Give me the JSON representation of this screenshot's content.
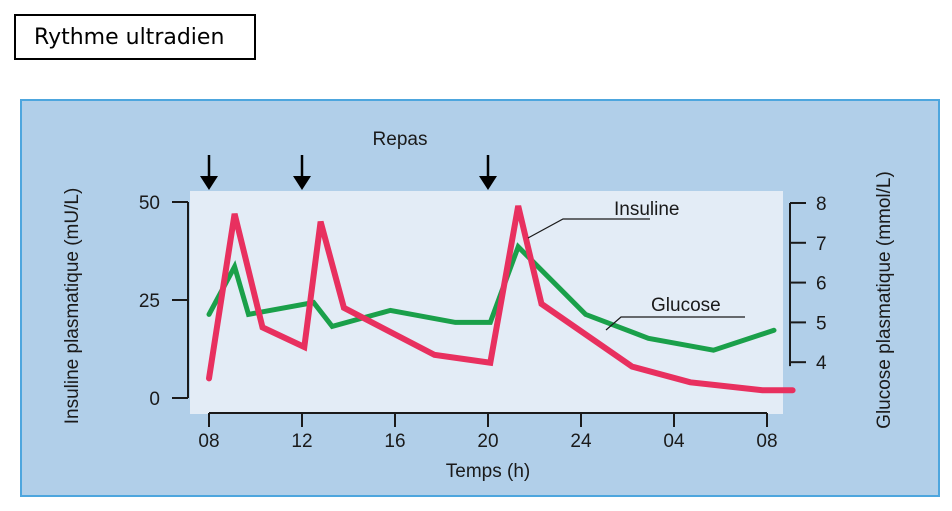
{
  "header": {
    "title": "Rythme ultradien"
  },
  "chart_data": {
    "type": "line",
    "annotation": "Repas",
    "meal_times": [
      "08",
      "12",
      "20"
    ],
    "meal_x": [
      0,
      4,
      12
    ],
    "xlabel": "Temps (h)",
    "ylabel_left": "Insuline plasmatique (mU/L)",
    "ylabel_right": "Glucose plasmatique (mmol/L)",
    "x_ticks": [
      "08",
      "12",
      "16",
      "20",
      "24",
      "04",
      "08"
    ],
    "x_tick_values": [
      0,
      4,
      8,
      12,
      16,
      20,
      24
    ],
    "xlim": [
      0,
      24
    ],
    "y_left_ticks": [
      "0",
      "25",
      "50"
    ],
    "y_left_values": [
      0,
      25,
      50
    ],
    "ylim_left": [
      0,
      50
    ],
    "y_right_ticks": [
      "4",
      "5",
      "6",
      "7",
      "8"
    ],
    "y_right_values": [
      4,
      5,
      6,
      7,
      8
    ],
    "ylim_right": [
      3.1,
      8
    ],
    "series": [
      {
        "name": "Insuline",
        "axis": "left",
        "color": "#e8305f",
        "x": [
          0,
          1.1,
          2.3,
          4.1,
          4.8,
          5.8,
          9.7,
          12.1,
          13.3,
          14.3,
          18.2,
          20.7,
          23.8,
          25.1
        ],
        "y": [
          5,
          47,
          18,
          13,
          45,
          23,
          11,
          9,
          49,
          24,
          8,
          4,
          2,
          2
        ]
      },
      {
        "name": "Glucose",
        "axis": "right",
        "color": "#1aa04a",
        "x": [
          0,
          1.1,
          1.7,
          4.5,
          5.3,
          7.8,
          10.6,
          12.1,
          13.3,
          16.2,
          18.9,
          21.7,
          24.3
        ],
        "y": [
          5.2,
          6.4,
          5.2,
          5.5,
          4.9,
          5.3,
          5.0,
          5.0,
          6.9,
          5.2,
          4.6,
          4.3,
          4.8
        ]
      }
    ],
    "legend": "inline labels with leader lines",
    "grid": false
  }
}
